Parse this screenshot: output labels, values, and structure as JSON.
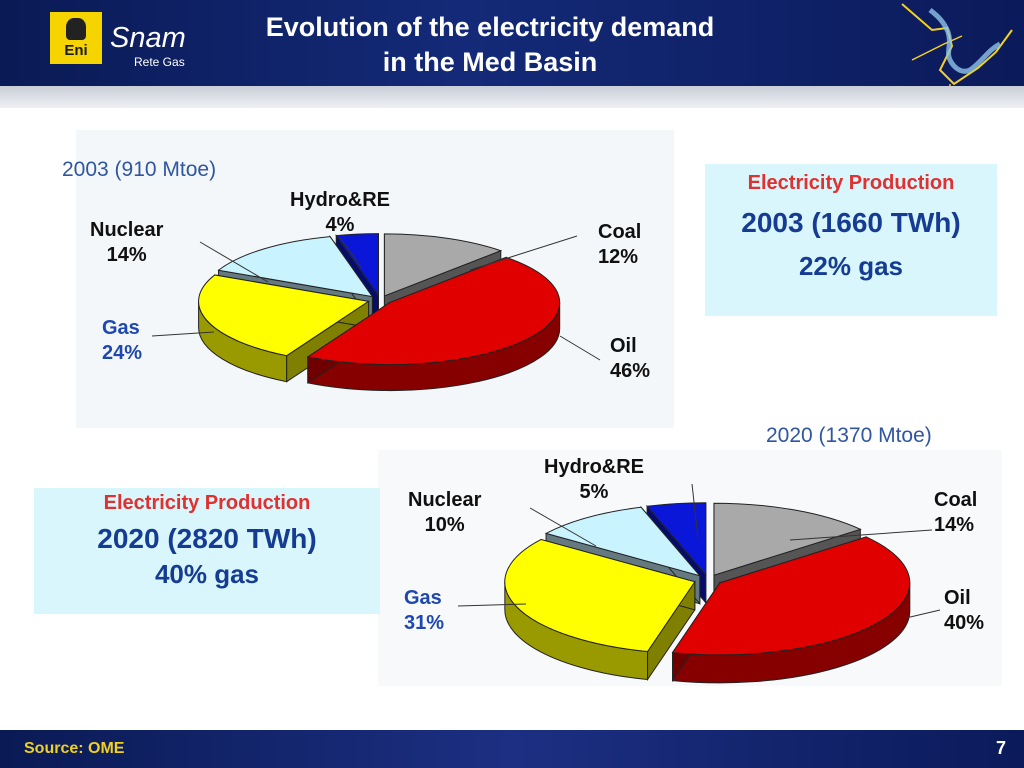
{
  "header": {
    "title_line1": "Evolution of the electricity demand",
    "title_line2": "in the Med Basin",
    "logo_eni": "Eni",
    "logo_snam": "Snam",
    "logo_rete": "Rete Gas"
  },
  "colors": {
    "coal": "#a9a9a9",
    "oil": "#e00000",
    "gas": "#ffff00",
    "nuclear": "#c9f3ff",
    "hydro_re": "#0b17d8",
    "header_bg": "#142a78",
    "box_bg": "#d8f6fb"
  },
  "chart_data": [
    {
      "type": "pie",
      "title": "2003 (910 Mtoe)",
      "categories": [
        "Coal",
        "Oil",
        "Gas",
        "Nuclear",
        "Hydro&RE"
      ],
      "values": [
        12,
        46,
        24,
        14,
        4
      ],
      "value_labels": [
        "12%",
        "46%",
        "24%",
        "14%",
        "4%"
      ],
      "unit": "%",
      "style": "3d-exploded"
    },
    {
      "type": "pie",
      "title": "2020 (1370 Mtoe)",
      "categories": [
        "Coal",
        "Oil",
        "Gas",
        "Nuclear",
        "Hydro&RE"
      ],
      "values": [
        14,
        40,
        31,
        10,
        5
      ],
      "value_labels": [
        "14%",
        "40%",
        "31%",
        "10%",
        "5%"
      ],
      "unit": "%",
      "style": "3d-exploded"
    }
  ],
  "info_box_2003": {
    "title": "Electricity Production",
    "main": "2003 (1660 TWh)",
    "gas": "22% gas"
  },
  "info_box_2020": {
    "title": "Electricity Production",
    "main": "2020 (2820 TWh)",
    "gas": "40% gas"
  },
  "footer": {
    "source": "Source: OME",
    "page": "7"
  }
}
